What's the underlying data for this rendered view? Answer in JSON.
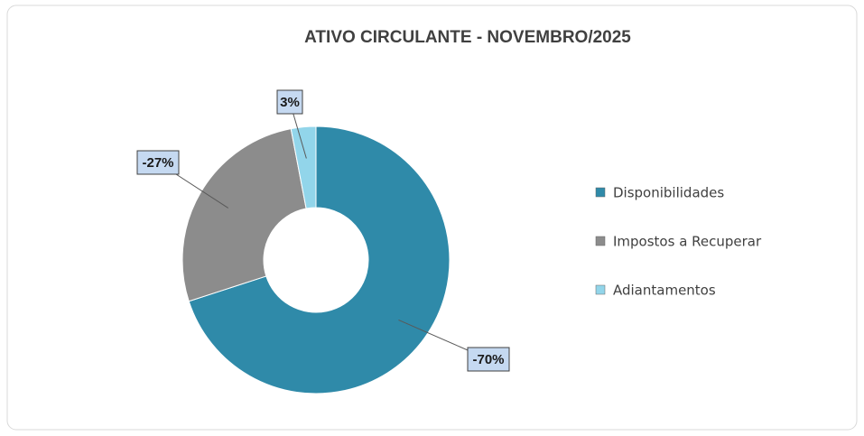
{
  "chart_data": {
    "type": "pie",
    "title": "ATIVO CIRCULANTE  - NOVEMBRO/2025",
    "categories": [
      "Disponibilidades",
      "Impostos a Recuperar",
      "Adiantamentos"
    ],
    "values": [
      -70,
      -27,
      3
    ],
    "value_labels": [
      "-70%",
      "-27%",
      "3%"
    ],
    "colors": [
      "#2f8aa9",
      "#8c8c8c",
      "#92d5ea"
    ],
    "donut": true,
    "legend": "right"
  }
}
